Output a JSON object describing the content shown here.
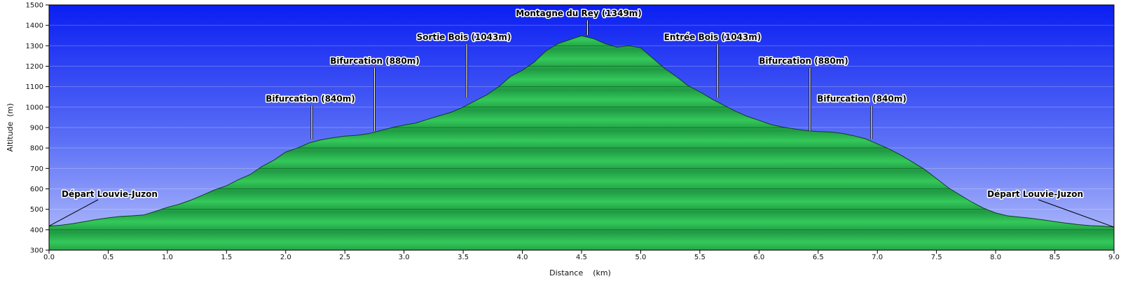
{
  "chart_data": {
    "type": "area",
    "xlabel": "Distance    (km)",
    "ylabel": "Altitude  (m)",
    "xlim": [
      0,
      9
    ],
    "ylim": [
      300,
      1500
    ],
    "grid": true,
    "x_ticks": [
      "0.0",
      "0.5",
      "1.0",
      "1.5",
      "2.0",
      "2.5",
      "3.0",
      "3.5",
      "4.0",
      "4.5",
      "5.0",
      "5.5",
      "6.0",
      "6.5",
      "7.0",
      "7.5",
      "8.0",
      "8.5",
      "9.0"
    ],
    "y_ticks": [
      "300",
      "400",
      "500",
      "600",
      "700",
      "800",
      "900",
      "1000",
      "1100",
      "1200",
      "1300",
      "1400",
      "1500"
    ],
    "x": [
      0.0,
      0.1,
      0.2,
      0.3,
      0.4,
      0.5,
      0.6,
      0.7,
      0.8,
      0.9,
      1.0,
      1.1,
      1.2,
      1.3,
      1.4,
      1.5,
      1.6,
      1.7,
      1.8,
      1.9,
      2.0,
      2.1,
      2.2,
      2.3,
      2.4,
      2.5,
      2.6,
      2.7,
      2.8,
      2.9,
      3.0,
      3.1,
      3.2,
      3.3,
      3.4,
      3.5,
      3.6,
      3.7,
      3.8,
      3.9,
      4.0,
      4.1,
      4.2,
      4.3,
      4.4,
      4.5,
      4.6,
      4.7,
      4.8,
      4.9,
      5.0,
      5.1,
      5.2,
      5.3,
      5.4,
      5.5,
      5.6,
      5.7,
      5.8,
      5.9,
      6.0,
      6.1,
      6.2,
      6.3,
      6.4,
      6.5,
      6.6,
      6.7,
      6.8,
      6.9,
      7.0,
      7.1,
      7.2,
      7.3,
      7.4,
      7.5,
      7.6,
      7.7,
      7.8,
      7.9,
      8.0,
      8.1,
      8.2,
      8.3,
      8.4,
      8.5,
      8.6,
      8.7,
      8.8,
      8.9,
      9.0
    ],
    "y": [
      418,
      422,
      430,
      440,
      450,
      458,
      465,
      468,
      472,
      490,
      510,
      525,
      545,
      570,
      595,
      615,
      645,
      670,
      710,
      740,
      780,
      800,
      825,
      840,
      850,
      858,
      862,
      870,
      885,
      900,
      912,
      922,
      940,
      958,
      975,
      1000,
      1030,
      1060,
      1100,
      1150,
      1180,
      1220,
      1275,
      1310,
      1330,
      1349,
      1335,
      1310,
      1293,
      1300,
      1290,
      1240,
      1190,
      1150,
      1105,
      1075,
      1040,
      1010,
      980,
      955,
      935,
      915,
      902,
      893,
      885,
      880,
      878,
      872,
      860,
      845,
      820,
      795,
      765,
      730,
      695,
      650,
      605,
      570,
      535,
      505,
      482,
      468,
      462,
      456,
      448,
      440,
      432,
      425,
      420,
      418,
      413
    ],
    "annotations": [
      {
        "label": "Départ Louvie-Juzon",
        "x": 0.0,
        "y": 418
      },
      {
        "label": "Bifurcation (840m)",
        "x": 2.22,
        "y": 840
      },
      {
        "label": "Bifurcation (880m)",
        "x": 2.75,
        "y": 880
      },
      {
        "label": "Sortie Bois (1043m)",
        "x": 3.53,
        "y": 1043
      },
      {
        "label": "Montagne du Rey (1349m)",
        "x": 4.55,
        "y": 1349
      },
      {
        "label": "Entrée  Bois (1043m)",
        "x": 5.65,
        "y": 1043
      },
      {
        "label": "Bifurcation (880m)",
        "x": 6.43,
        "y": 880
      },
      {
        "label": "Bifurcation (840m)",
        "x": 6.95,
        "y": 840
      },
      {
        "label": "Départ Louvie-Juzon",
        "x": 9.0,
        "y": 413
      }
    ]
  }
}
